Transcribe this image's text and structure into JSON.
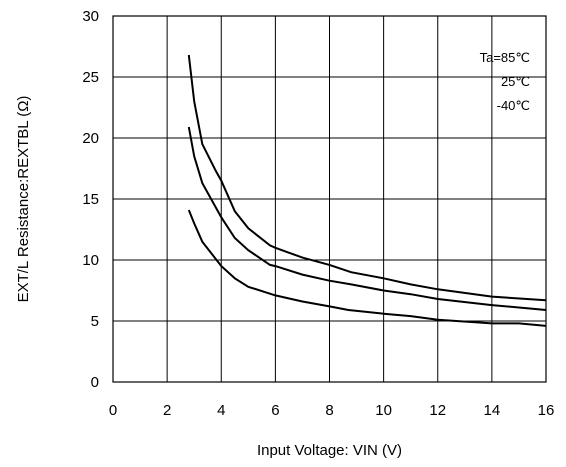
{
  "chart_data": {
    "type": "line",
    "xlabel": "Input Voltage: VIN (V)",
    "ylabel": "EXT/L Resistance:REXTBL (Ω)",
    "xlim": [
      0,
      16
    ],
    "ylim": [
      0,
      30
    ],
    "x_ticks": [
      "0",
      "2",
      "4",
      "6",
      "8",
      "10",
      "12",
      "14",
      "16"
    ],
    "y_ticks": [
      "0",
      "5",
      "10",
      "15",
      "20",
      "25",
      "30"
    ],
    "grid": true,
    "legend_position": "top-right",
    "legend": [
      "Ta=85℃",
      "25℃",
      "-40℃"
    ],
    "series": [
      {
        "name": "Ta=85℃",
        "points": [
          [
            2.8,
            26.8
          ],
          [
            3.0,
            23.0
          ],
          [
            3.3,
            19.5
          ],
          [
            3.8,
            17.3
          ],
          [
            4.0,
            16.5
          ],
          [
            4.5,
            14.0
          ],
          [
            5.0,
            12.6
          ],
          [
            5.8,
            11.2
          ],
          [
            6.0,
            11.0
          ],
          [
            7.0,
            10.2
          ],
          [
            8.0,
            9.6
          ],
          [
            8.8,
            9.0
          ],
          [
            10.0,
            8.5
          ],
          [
            11.0,
            8.0
          ],
          [
            12.0,
            7.6
          ],
          [
            14.0,
            7.0
          ],
          [
            16.0,
            6.7
          ]
        ]
      },
      {
        "name": "25℃",
        "points": [
          [
            2.8,
            20.9
          ],
          [
            3.0,
            18.5
          ],
          [
            3.3,
            16.3
          ],
          [
            4.0,
            13.5
          ],
          [
            4.5,
            11.8
          ],
          [
            5.0,
            10.8
          ],
          [
            5.8,
            9.6
          ],
          [
            6.0,
            9.5
          ],
          [
            7.0,
            8.8
          ],
          [
            8.0,
            8.3
          ],
          [
            8.8,
            8.0
          ],
          [
            10.0,
            7.5
          ],
          [
            11.0,
            7.2
          ],
          [
            12.0,
            6.8
          ],
          [
            14.0,
            6.3
          ],
          [
            16.0,
            5.9
          ]
        ]
      },
      {
        "name": "-40℃",
        "points": [
          [
            2.8,
            14.1
          ],
          [
            3.0,
            13.0
          ],
          [
            3.3,
            11.5
          ],
          [
            4.0,
            9.5
          ],
          [
            4.5,
            8.5
          ],
          [
            5.0,
            7.8
          ],
          [
            6.0,
            7.1
          ],
          [
            7.0,
            6.6
          ],
          [
            8.0,
            6.2
          ],
          [
            8.7,
            5.9
          ],
          [
            10.0,
            5.6
          ],
          [
            11.0,
            5.4
          ],
          [
            12.0,
            5.1
          ],
          [
            14.0,
            4.8
          ],
          [
            15.0,
            4.8
          ],
          [
            16.0,
            4.6
          ]
        ]
      }
    ]
  }
}
